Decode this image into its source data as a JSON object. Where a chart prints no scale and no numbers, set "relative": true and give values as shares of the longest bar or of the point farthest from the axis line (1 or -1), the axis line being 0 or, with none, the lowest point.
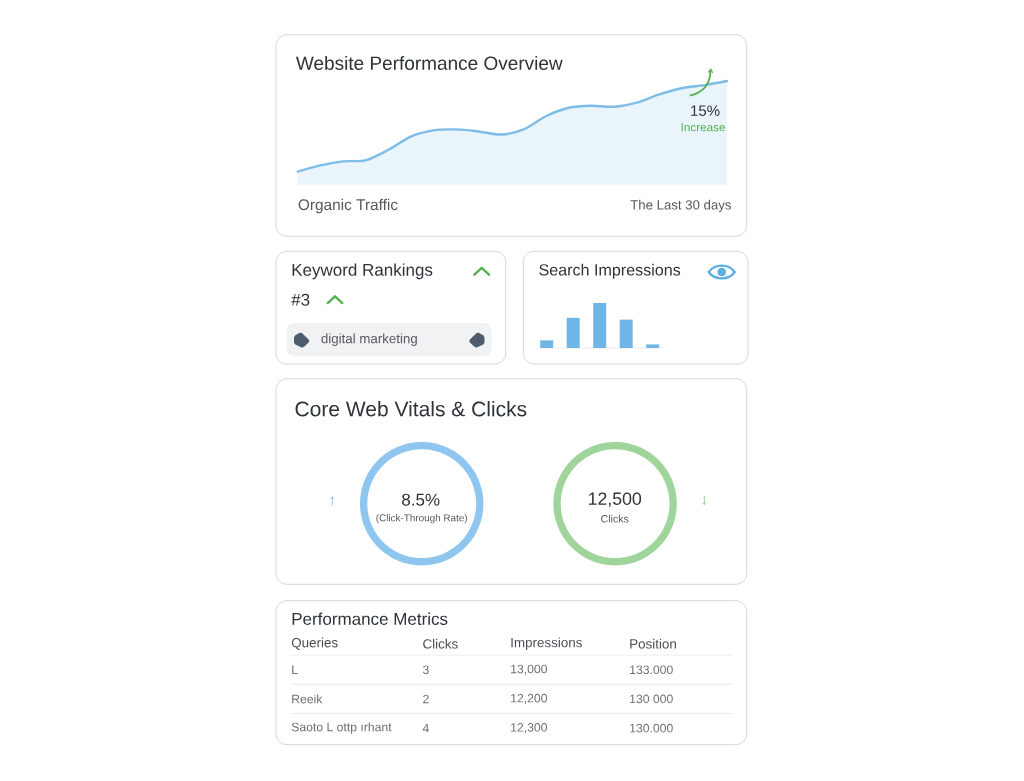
{
  "chart_data": [
    {
      "type": "area",
      "title": "Website Performance Overview",
      "xlabel": "Organic Traffic",
      "relative": true,
      "categories": [
        null,
        null,
        null,
        null,
        null,
        null,
        null,
        null,
        null,
        null,
        null,
        null,
        null,
        null,
        null,
        null,
        null,
        null,
        null,
        null
      ],
      "values": [
        0.12,
        0.18,
        0.22,
        0.23,
        0.33,
        0.46,
        0.52,
        0.53,
        0.51,
        0.48,
        0.53,
        0.66,
        0.74,
        0.76,
        0.75,
        0.79,
        0.87,
        0.93,
        0.96,
        1
      ],
      "color": "#7dbde8",
      "annotations": [
        "15%",
        "Increase",
        "The Last 30 days"
      ]
    },
    {
      "type": "other",
      "title": "Keyword Rankings",
      "annotations": [
        "#3",
        "digital marketing"
      ]
    },
    {
      "type": "bar",
      "title": "Search Impressions",
      "relative": true,
      "categories": [
        null,
        null,
        null,
        null,
        null
      ],
      "values": [
        0.17,
        0.67,
        1,
        0.63,
        0.08
      ],
      "color": "#6fb5e6"
    },
    {
      "type": "other",
      "title": "Core Web Vitals & Clicks"
    },
    {
      "type": "donut",
      "categories": [
        null
      ],
      "values": [
        100
      ],
      "colors": [
        "#8ec6ef"
      ],
      "annotations": [
        "8.5%",
        "(Click-Through Rate)"
      ]
    },
    {
      "type": "donut",
      "categories": [
        null
      ],
      "values": [
        100
      ],
      "colors": [
        "#9fd49b"
      ],
      "annotations": [
        "12,500",
        "Clicks"
      ]
    },
    {
      "type": "other",
      "title": "Performance Metrics",
      "categories": [
        "Queries",
        "Clicks",
        "Impressions",
        "Position"
      ],
      "annotations": [
        "L",
        "3",
        "13,000",
        "133.000",
        "Reeik",
        "2",
        "12,200",
        "130 000",
        "Saoto L ottp ırhant",
        "4",
        "12,300",
        "130.000"
      ]
    }
  ]
}
